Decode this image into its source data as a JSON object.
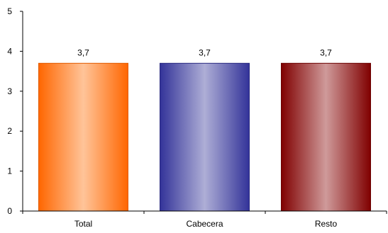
{
  "chart_data": {
    "type": "bar",
    "categories": [
      "Total",
      "Cabecera",
      "Resto"
    ],
    "values": [
      3.7,
      3.7,
      3.7
    ],
    "data_labels": [
      "3,7",
      "3,7",
      "3,7"
    ],
    "yticks": [
      "0",
      "1",
      "2",
      "3",
      "4",
      "5"
    ],
    "ylim": [
      0,
      5
    ],
    "title": "",
    "xlabel": "",
    "ylabel": "",
    "grid": false,
    "legend": "none",
    "bar_colors": [
      {
        "edge": "#ff6600",
        "center": "#ffc499",
        "stroke": "#e05a00"
      },
      {
        "edge": "#333399",
        "center": "#aeaed6",
        "stroke": "#2a2a80"
      },
      {
        "edge": "#800000",
        "center": "#cf9a9a",
        "stroke": "#6a0000"
      }
    ]
  }
}
